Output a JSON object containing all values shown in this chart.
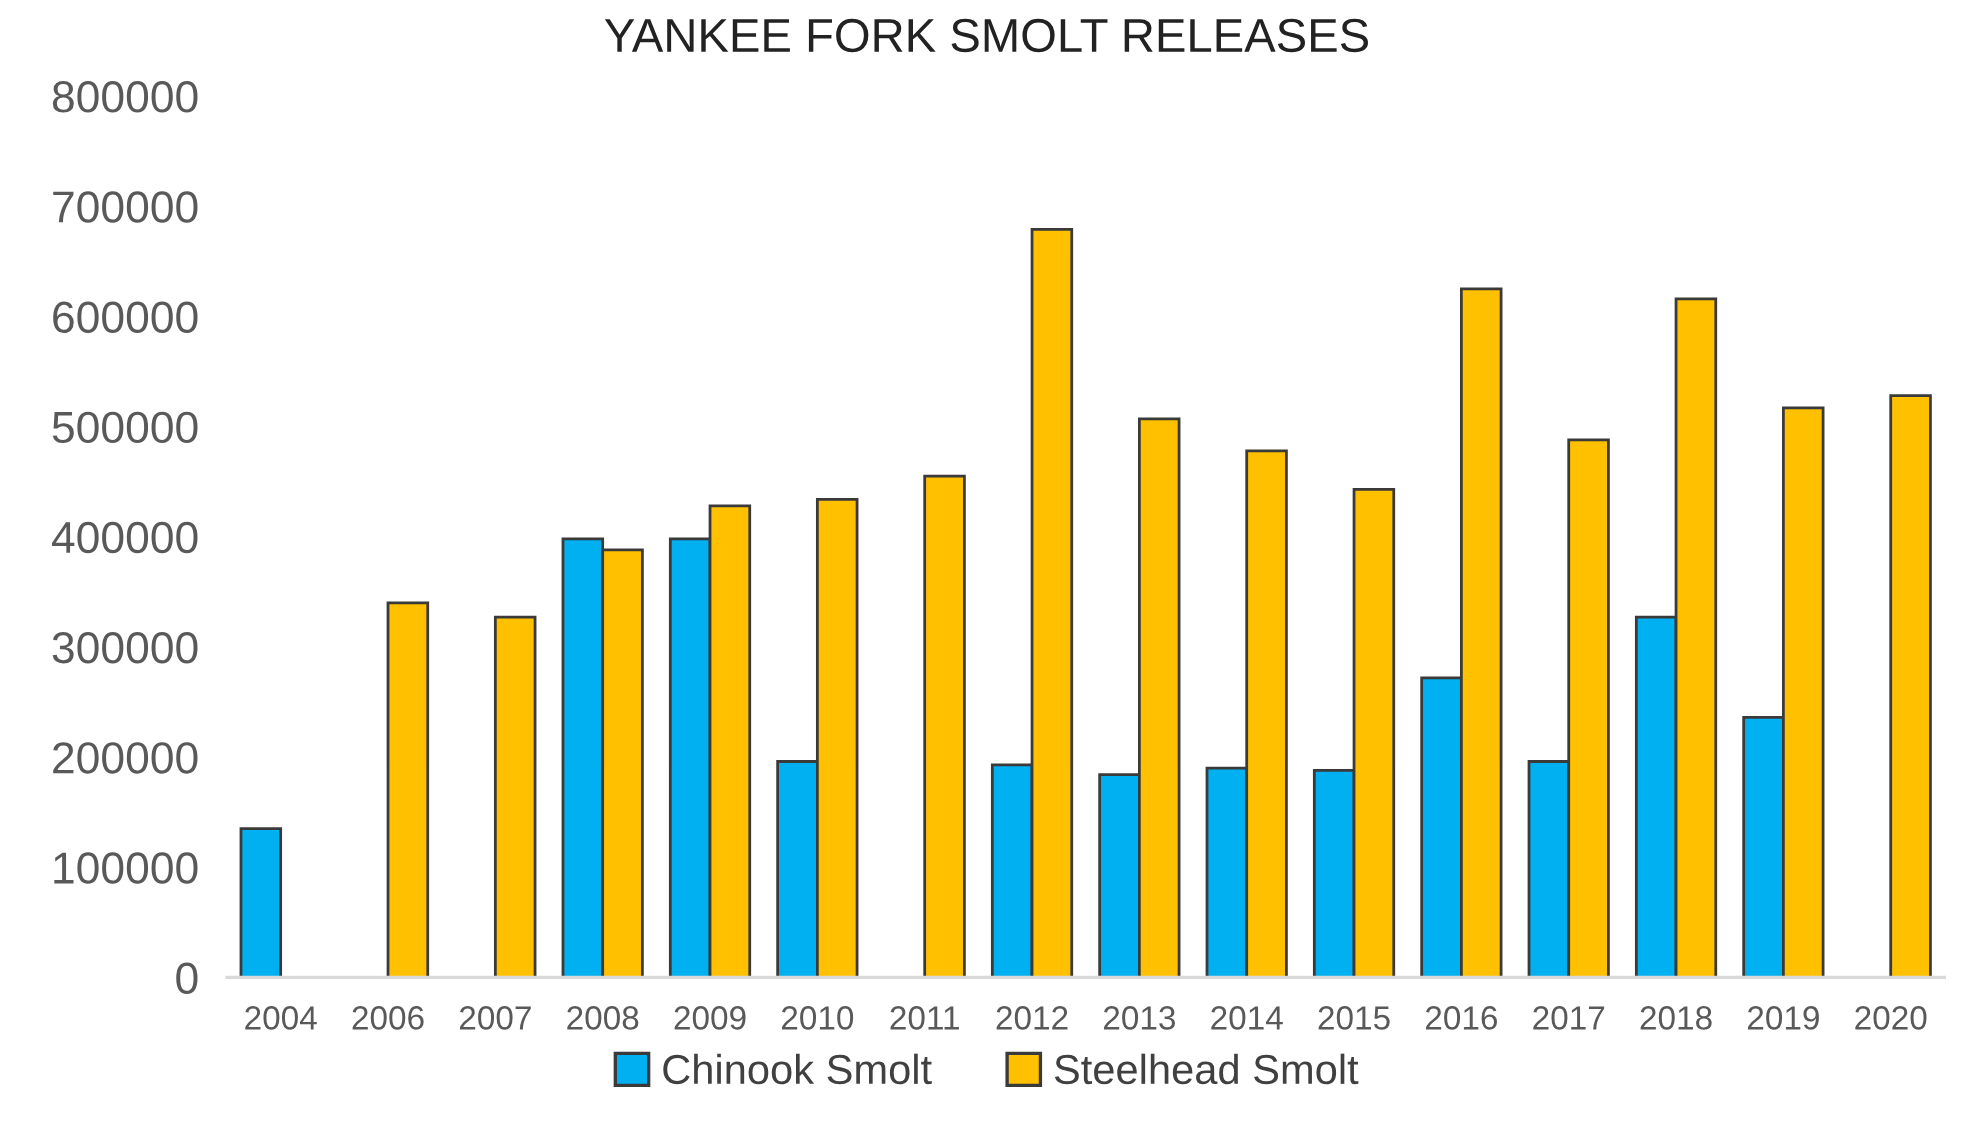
{
  "chart_data": {
    "type": "bar",
    "title": "YANKEE FORK SMOLT RELEASES",
    "categories": [
      "2004",
      "2006",
      "2007",
      "2008",
      "2009",
      "2010",
      "2011",
      "2012",
      "2013",
      "2014",
      "2015",
      "2016",
      "2017",
      "2018",
      "2019",
      "2020"
    ],
    "series": [
      {
        "name": "Chinook Smolt",
        "color": "#00b0f0",
        "values": [
          135000,
          null,
          null,
          398000,
          398000,
          196000,
          null,
          193000,
          184000,
          190000,
          188000,
          272000,
          196000,
          327000,
          236000,
          null
        ]
      },
      {
        "name": "Steelhead Smolt",
        "color": "#ffc000",
        "values": [
          null,
          340000,
          327000,
          388000,
          428000,
          434000,
          455000,
          679000,
          507000,
          478000,
          443000,
          625000,
          488000,
          616000,
          517000,
          528000
        ]
      }
    ],
    "ylim": [
      0,
      800000
    ],
    "yticks": [
      0,
      100000,
      200000,
      300000,
      400000,
      500000,
      600000,
      700000,
      800000
    ],
    "legend": "bottom"
  }
}
